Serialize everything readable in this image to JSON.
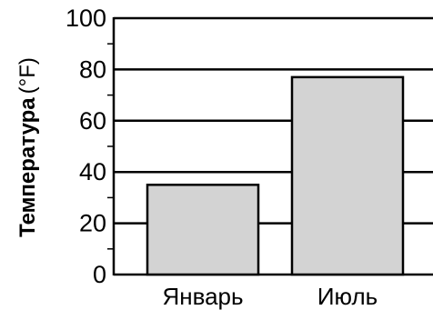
{
  "chart_data": {
    "type": "bar",
    "categories": [
      "Январь",
      "Июль"
    ],
    "values": [
      35,
      77
    ],
    "title": "",
    "xlabel": "",
    "ylabel": "Температура",
    "ylabel_unit": "(°F)",
    "ylim": [
      0,
      100
    ],
    "major_ticks": [
      0,
      20,
      40,
      60,
      80,
      100
    ],
    "tick_labels": [
      "0",
      "20",
      "40",
      "60",
      "80",
      "100"
    ],
    "minor_tick_step": 10,
    "grid": true,
    "bar_color": "#d3d3d3",
    "bar_edge_color": "#000000"
  }
}
